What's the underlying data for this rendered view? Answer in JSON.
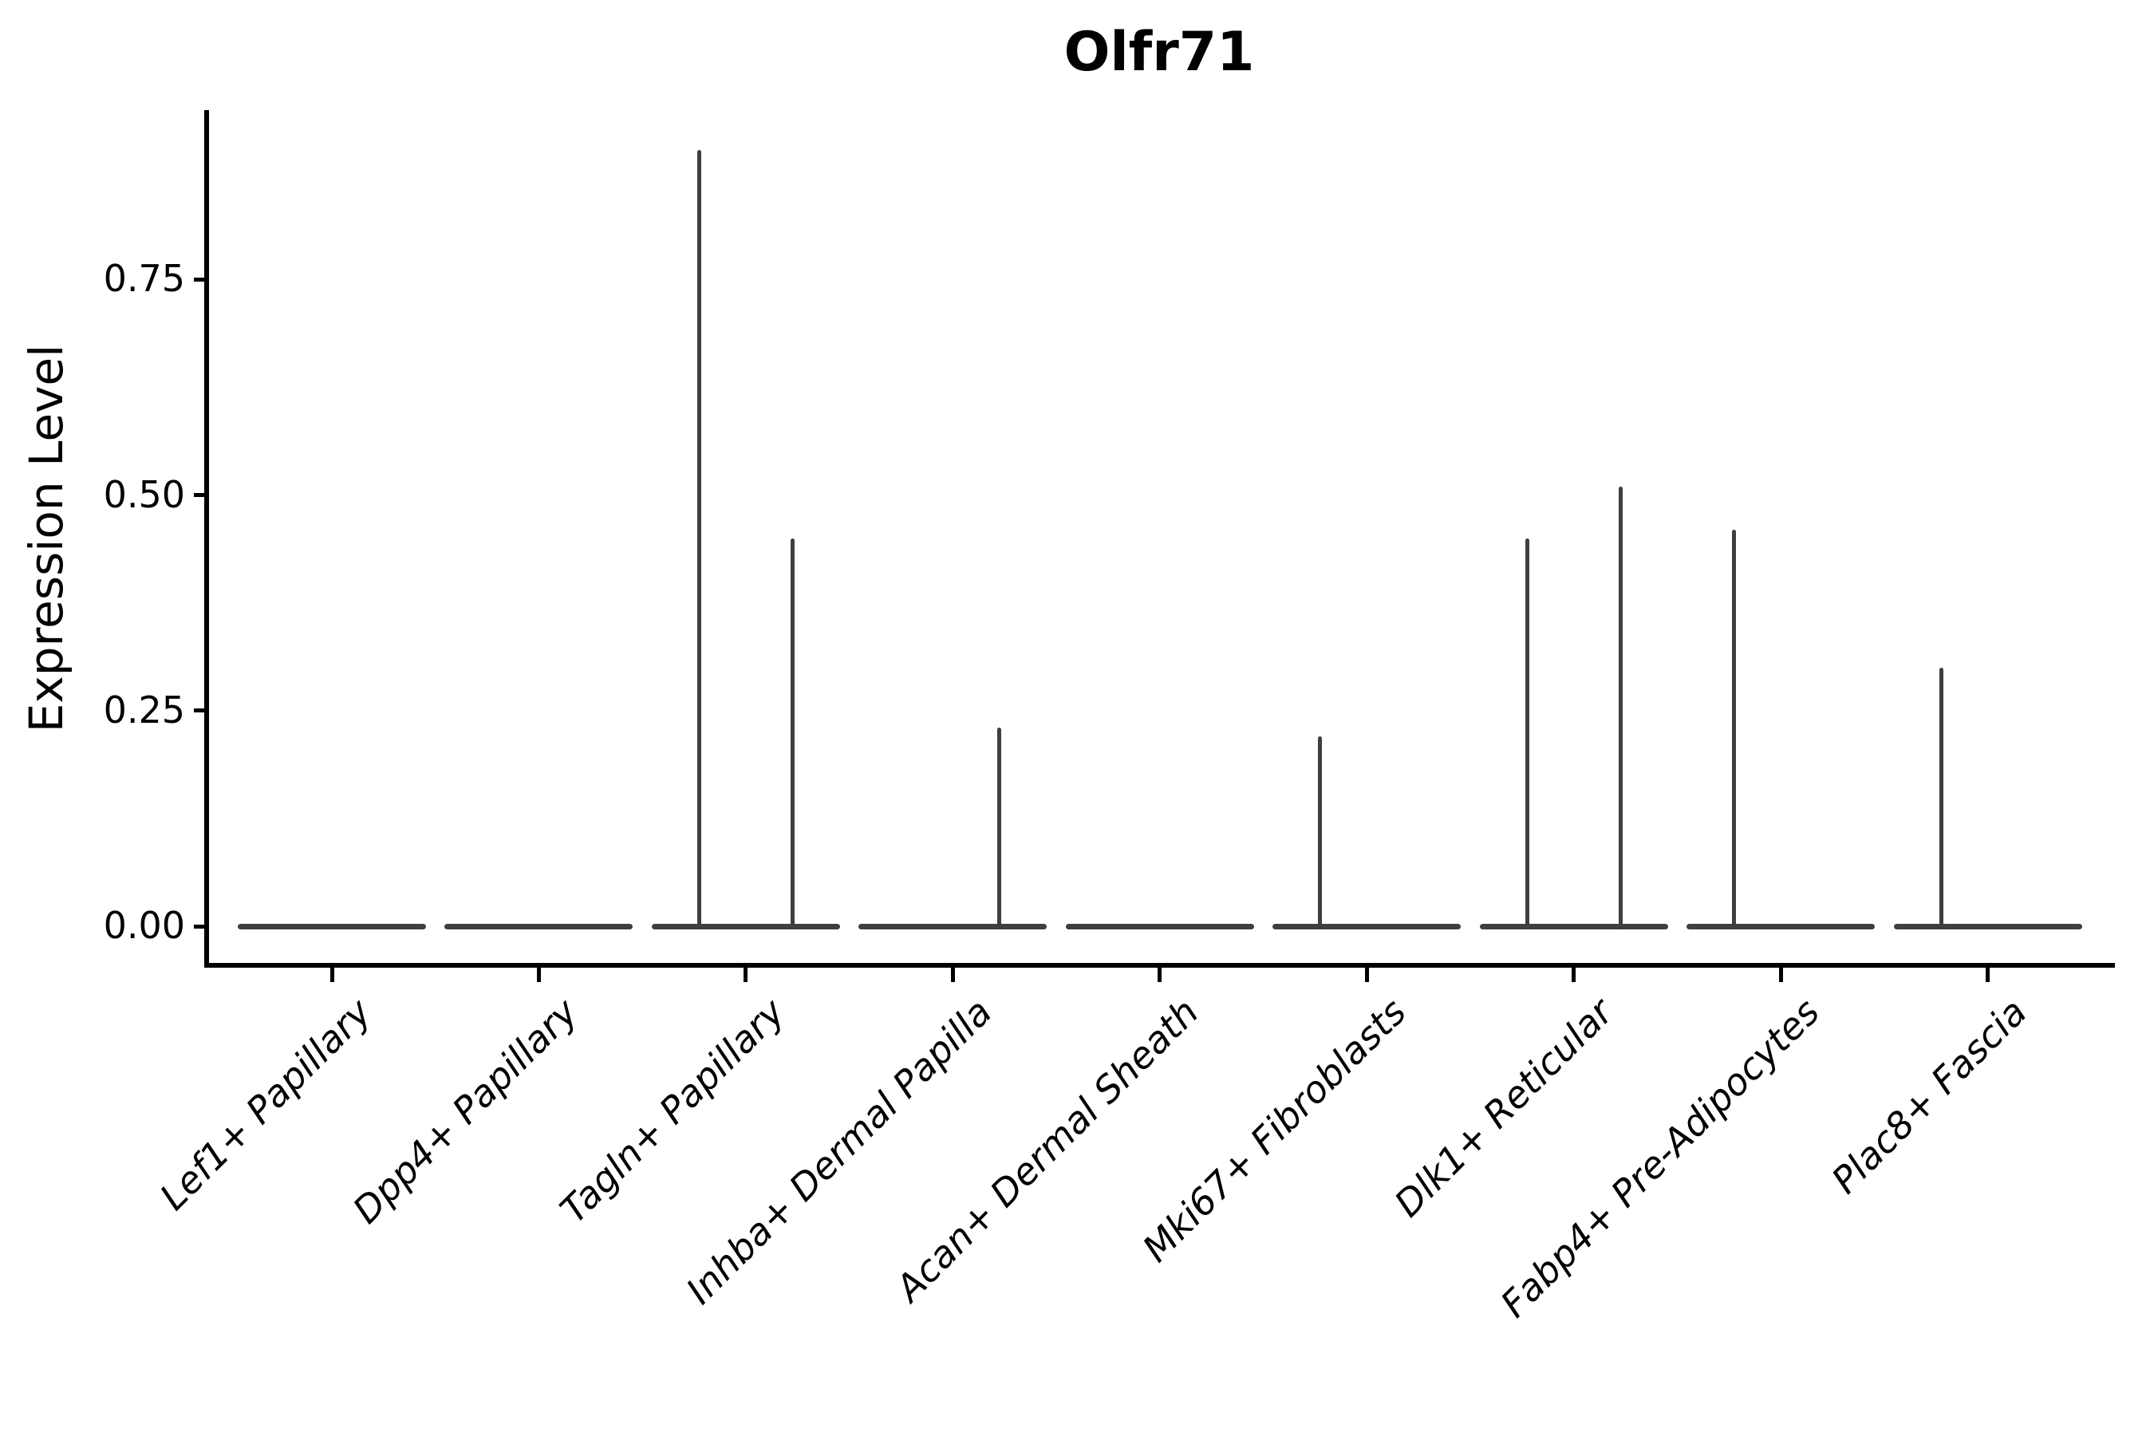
{
  "title": "Olfr71",
  "y_axis": {
    "label": "Expression Level",
    "tick_labels": [
      "0.00",
      "0.25",
      "0.50",
      "0.75"
    ],
    "tick_values": [
      0,
      0.25,
      0.5,
      0.75
    ]
  },
  "x_axis": {
    "label": "",
    "tick_labels": [
      "Lef1+ Papillary",
      "Dpp4+ Papillary",
      "Tagln+ Papillary",
      "Inhba+ Dermal Papilla",
      "Acan+ Dermal Sheath",
      "Mki67+ Fibroblasts",
      "Dlk1+ Reticular",
      "Fabp4+ Pre-Adipocytes",
      "Plac8+ Fascia"
    ]
  },
  "colors": {
    "background": "#ffffff",
    "axis": "#000000",
    "text": "#000000",
    "violin_line": "#3f3f3f"
  },
  "chart_data": {
    "type": "violin",
    "title": "Olfr71",
    "xlabel": "",
    "ylabel": "Expression Level",
    "ylim": [
      -0.045,
      0.945
    ],
    "grid": false,
    "legend": null,
    "yticks": [
      {
        "label": "0.00",
        "value": 0
      },
      {
        "label": "0.25",
        "value": 0.25
      },
      {
        "label": "0.50",
        "value": 0.5
      },
      {
        "label": "0.75",
        "value": 0.75
      }
    ],
    "description": "Violin plot of Olfr71 expression; most cells at 0 giving flat baselines at y=0 with thin density spikes up to the max expressing cell",
    "categories": [
      {
        "label": "Lef1+ Papillary",
        "baseline": 0,
        "spikes": []
      },
      {
        "label": "Dpp4+ Papillary",
        "baseline": 0,
        "spikes": []
      },
      {
        "label": "Tagln+ Papillary",
        "baseline": 0,
        "spikes": [
          {
            "side": "left",
            "value": 0.9
          },
          {
            "side": "right",
            "value": 0.45
          }
        ]
      },
      {
        "label": "Inhba+ Dermal Papilla",
        "baseline": 0,
        "spikes": [
          {
            "side": "right",
            "value": 0.23
          }
        ]
      },
      {
        "label": "Acan+ Dermal Sheath",
        "baseline": 0,
        "spikes": []
      },
      {
        "label": "Mki67+ Fibroblasts",
        "baseline": 0,
        "spikes": [
          {
            "side": "left",
            "value": 0.22
          }
        ]
      },
      {
        "label": "Dlk1+ Reticular",
        "baseline": 0,
        "spikes": [
          {
            "side": "left",
            "value": 0.45
          },
          {
            "side": "right",
            "value": 0.51
          }
        ]
      },
      {
        "label": "Fabp4+ Pre-Adipocytes",
        "baseline": 0,
        "spikes": [
          {
            "side": "left",
            "value": 0.46
          }
        ]
      },
      {
        "label": "Plac8+ Fascia",
        "baseline": 0,
        "spikes": [
          {
            "side": "left",
            "value": 0.3
          }
        ]
      }
    ]
  }
}
